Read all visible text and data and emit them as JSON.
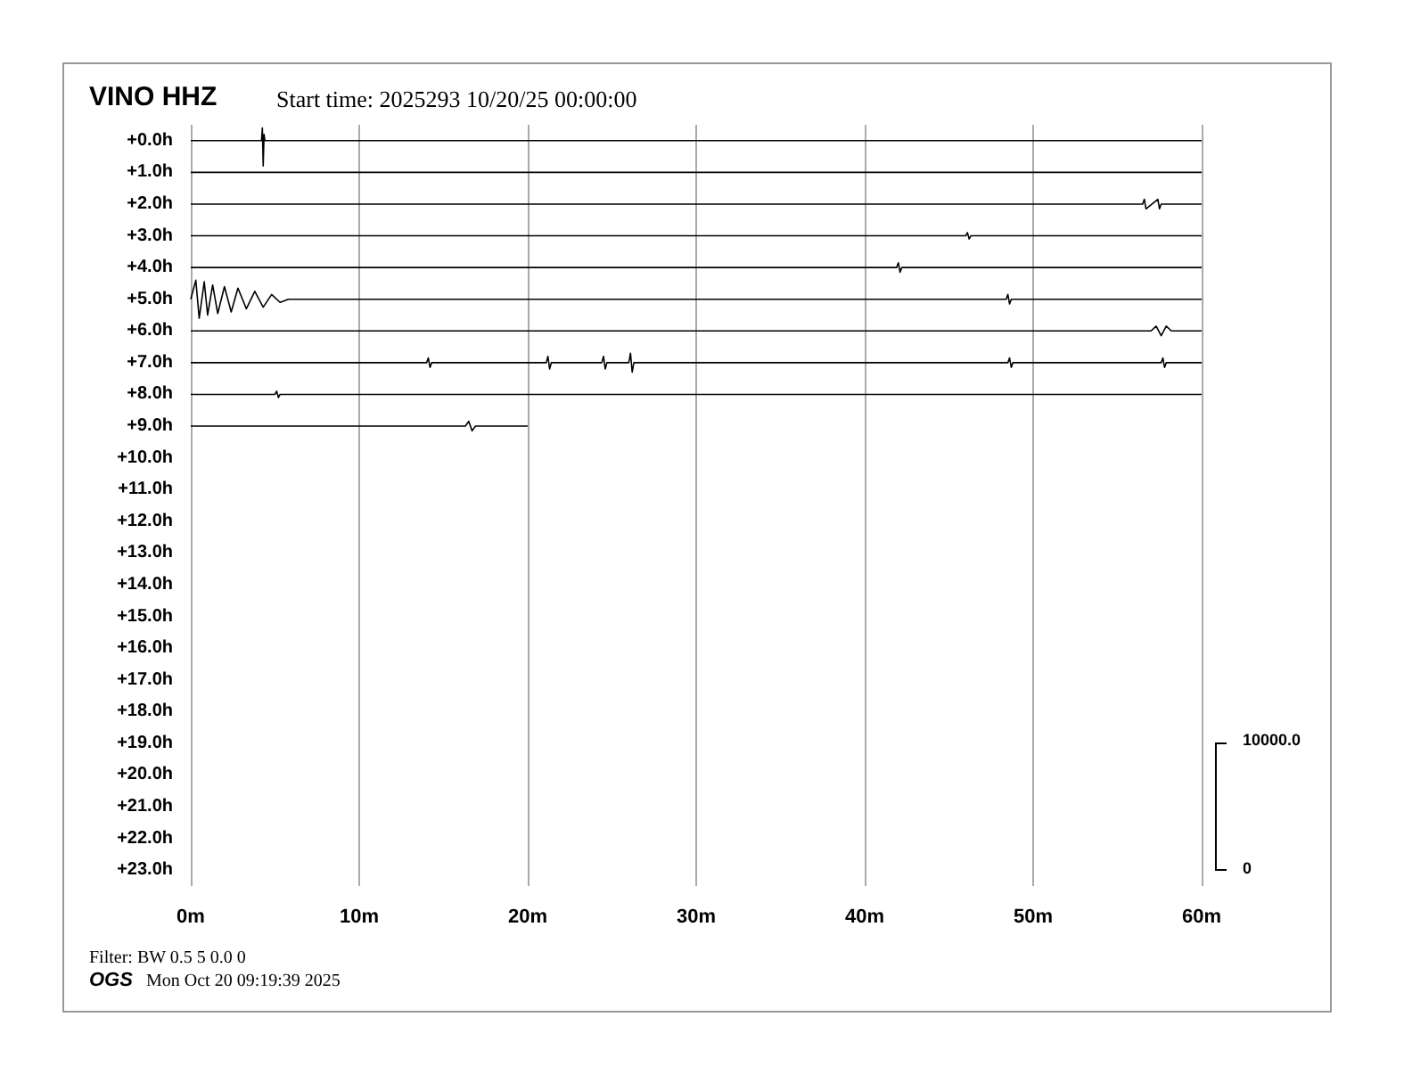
{
  "chart_data": {
    "type": "line",
    "title": "VINO HHZ",
    "subtitle": "Start time: 2025293 10/20/25 00:00:00",
    "annotations": [
      "10000.0",
      "0",
      "Filter: BW 0.5 5 0.0 0",
      "OGS",
      "Mon Oct 20 09:19:39 2025"
    ],
    "xlim": [
      0,
      60
    ],
    "xticks": [
      {
        "value": 0,
        "label": "0m"
      },
      {
        "value": 10,
        "label": "10m"
      },
      {
        "value": 20,
        "label": "20m"
      },
      {
        "value": 30,
        "label": "30m"
      },
      {
        "value": 40,
        "label": "40m"
      },
      {
        "value": 50,
        "label": "50m"
      },
      {
        "value": 60,
        "label": "60m"
      }
    ],
    "ylim": [
      23.5,
      -0.5
    ],
    "yticks": [
      {
        "value": 0,
        "label": "+0.0h"
      },
      {
        "value": 1,
        "label": "+1.0h"
      },
      {
        "value": 2,
        "label": "+2.0h"
      },
      {
        "value": 3,
        "label": "+3.0h"
      },
      {
        "value": 4,
        "label": "+4.0h"
      },
      {
        "value": 5,
        "label": "+5.0h"
      },
      {
        "value": 6,
        "label": "+6.0h"
      },
      {
        "value": 7,
        "label": "+7.0h"
      },
      {
        "value": 8,
        "label": "+8.0h"
      },
      {
        "value": 9,
        "label": "+9.0h"
      },
      {
        "value": 10,
        "label": "+10.0h"
      },
      {
        "value": 11,
        "label": "+11.0h"
      },
      {
        "value": 12,
        "label": "+12.0h"
      },
      {
        "value": 13,
        "label": "+13.0h"
      },
      {
        "value": 14,
        "label": "+14.0h"
      },
      {
        "value": 15,
        "label": "+15.0h"
      },
      {
        "value": 16,
        "label": "+16.0h"
      },
      {
        "value": 17,
        "label": "+17.0h"
      },
      {
        "value": 18,
        "label": "+18.0h"
      },
      {
        "value": 19,
        "label": "+19.0h"
      },
      {
        "value": 20,
        "label": "+20.0h"
      },
      {
        "value": 21,
        "label": "+21.0h"
      },
      {
        "value": 22,
        "label": "+22.0h"
      },
      {
        "value": 23,
        "label": "+23.0h"
      }
    ],
    "grid": "x",
    "series": [
      {
        "color": "#000000",
        "x": [
          0,
          4.2,
          4.25,
          4.3,
          4.35,
          4.4,
          30,
          60
        ],
        "values": [
          0,
          0,
          -0.4,
          0.8,
          -0.2,
          0,
          0,
          0
        ]
      },
      {
        "color": "#000000",
        "x": [
          0,
          30,
          60
        ],
        "values": [
          1,
          1,
          1
        ]
      },
      {
        "color": "#000000",
        "x": [
          0,
          56.5,
          56.6,
          56.7,
          57.4,
          57.5,
          57.6,
          60
        ],
        "values": [
          2,
          2,
          1.85,
          2.15,
          1.85,
          2.15,
          2,
          2
        ]
      },
      {
        "color": "#000000",
        "x": [
          0,
          46,
          46.1,
          46.2,
          46.3,
          60
        ],
        "values": [
          3,
          3,
          2.9,
          3.1,
          3,
          3
        ]
      },
      {
        "color": "#000000",
        "x": [
          0,
          41.9,
          42,
          42.1,
          42.2,
          60
        ],
        "values": [
          4,
          4,
          3.85,
          4.15,
          4,
          4
        ]
      },
      {
        "color": "#000000",
        "x": [
          0,
          0.3,
          0.5,
          0.8,
          1.0,
          1.3,
          1.6,
          2.0,
          2.4,
          2.8,
          3.3,
          3.8,
          4.3,
          4.8,
          5.3,
          5.8,
          48.4,
          48.5,
          48.6,
          48.7,
          60
        ],
        "values": [
          5,
          4.4,
          5.6,
          4.45,
          5.5,
          4.55,
          5.45,
          4.6,
          5.4,
          4.65,
          5.3,
          4.75,
          5.25,
          4.85,
          5.1,
          5,
          5,
          4.85,
          5.15,
          5,
          5
        ]
      },
      {
        "color": "#000000",
        "x": [
          0,
          57,
          57.3,
          57.6,
          57.9,
          58.2,
          60
        ],
        "values": [
          6,
          6,
          5.85,
          6.15,
          5.85,
          6,
          6
        ]
      },
      {
        "color": "#000000",
        "x": [
          0,
          14,
          14.1,
          14.2,
          14.3,
          21.1,
          21.2,
          21.3,
          21.4,
          24.4,
          24.5,
          24.6,
          24.7,
          26,
          26.1,
          26.2,
          26.3,
          48.5,
          48.6,
          48.7,
          48.8,
          57.6,
          57.7,
          57.8,
          57.9,
          60
        ],
        "values": [
          7,
          7,
          6.85,
          7.15,
          7,
          7,
          6.8,
          7.2,
          7,
          7,
          6.8,
          7.2,
          7,
          7,
          6.7,
          7.3,
          7,
          7,
          6.85,
          7.15,
          7,
          7,
          6.85,
          7.15,
          7,
          7
        ]
      },
      {
        "color": "#000000",
        "x": [
          0,
          5,
          5.1,
          5.2,
          5.3,
          60
        ],
        "values": [
          8,
          8,
          7.9,
          8.1,
          8,
          8
        ]
      },
      {
        "color": "#000000",
        "x": [
          0,
          16.3,
          16.5,
          16.7,
          16.9,
          20
        ],
        "values": [
          9,
          9,
          8.85,
          9.15,
          9,
          9
        ]
      }
    ]
  }
}
